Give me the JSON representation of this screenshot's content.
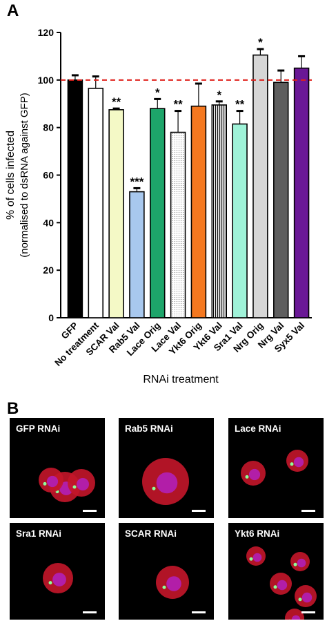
{
  "panel_a_label": "A",
  "panel_b_label": "B",
  "chart_data": {
    "type": "bar",
    "title": "",
    "xlabel": "RNAi treatment",
    "ylabel": "% of cells infected",
    "ylabel_sub": "(normalised to dsRNA against GFP)",
    "ylim": [
      0,
      120
    ],
    "yticks": [
      0,
      20,
      40,
      60,
      80,
      100,
      120
    ],
    "reference_line": 100,
    "reference_line_color": "#e0201b",
    "categories": [
      "GFP",
      "No treatment",
      "SCAR Val",
      "Rab5 Val",
      "Lace Orig",
      "Lace Val",
      "Ykt6 Orig",
      "Ykt6 Val",
      "Sra1 Val",
      "Nrg Orig",
      "Nrg Val",
      "Syx5 Val"
    ],
    "values": [
      100,
      96.5,
      87.5,
      53,
      88,
      78,
      89,
      89.5,
      81.5,
      110.5,
      99,
      105
    ],
    "error_upper": [
      102,
      101.5,
      88,
      54.5,
      92,
      87,
      98.5,
      91,
      87,
      113,
      104,
      110
    ],
    "significance": [
      "",
      "",
      "**",
      "***",
      "*",
      "**",
      "",
      "*",
      "**",
      "*",
      "",
      ""
    ],
    "bar_colors": [
      "#000000",
      "#ffffff",
      "#f4f9c6",
      "#a8c8ee",
      "#1da56a",
      "dots",
      "#f47820",
      "vstripes",
      "#9ff2d8",
      "#d6d6d6",
      "#5e5e5e",
      "#6a1896"
    ]
  },
  "micrographs": [
    {
      "label": "GFP RNAi"
    },
    {
      "label": "Rab5 RNAi"
    },
    {
      "label": "Lace RNAi"
    },
    {
      "label": "Sra1 RNAi"
    },
    {
      "label": "SCAR RNAi"
    },
    {
      "label": "Ykt6 RNAi"
    }
  ]
}
